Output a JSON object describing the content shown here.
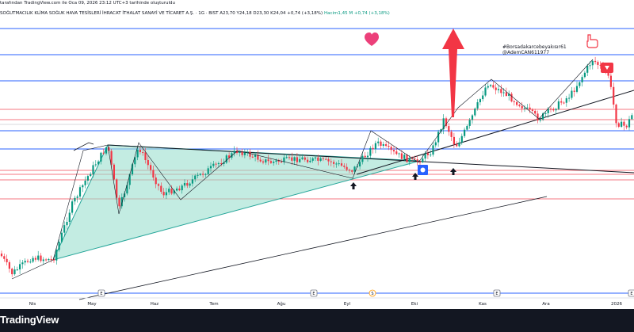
{
  "header": {
    "top_note": "tarafından TradingView.com ile Oca 09, 2026 23:12 UTC+3 tarihinde oluşturuldu",
    "symbol": "SOĞUTMACILIK KLİMA SOĞUK HAVA TESİSLERİ İHRACAT İTHALAT SANAYİ VE TİCARET A.Ş. · 1G · BIST",
    "ohlc": "A23,70 Y24,18 D23,30 K24,04 +0,74 (+3,18%)",
    "volume": "Hacim1,45 M +0,74 (+3,18%)"
  },
  "author_note": {
    "line1": "#Borsadakarcebeyakısır61",
    "line2": "@AdemCAN611977"
  },
  "footer": {
    "logo_text": "TradingView"
  },
  "colors": {
    "up": "#089981",
    "down": "#f23645",
    "blue_level": "#2962ff",
    "red_level": "#f23645",
    "triangle_fill": "#9be0cf",
    "triangle_stroke": "#26a69a",
    "trend_line": "#131722",
    "arrow": "#f23645",
    "heart": "#ec407a",
    "footer_bg": "#131722"
  },
  "icons": [
    "heart-icon",
    "hand-pointer-icon",
    "big-up-arrow-icon",
    "small-up-arrow-icon",
    "flag-icon",
    "earnings-badge-icon",
    "dividend-badge-icon",
    "tradingview-logo-icon"
  ],
  "chart_data": {
    "type": "candlestick",
    "title": "",
    "xlabel": "",
    "ylabel": "",
    "x_tick_labels": [
      "Nis",
      "May",
      "Haz",
      "Tem",
      "Ağu",
      "Eyl",
      "Eki",
      "Kas",
      "Ara",
      "2026"
    ],
    "y_scale": "price (no printed axis)",
    "horizontal_levels": [
      {
        "color": "blue",
        "count": 6
      },
      {
        "color": "red",
        "count": 6
      }
    ],
    "series_trend": [
      {
        "month": "Nis",
        "close_level": "low"
      },
      {
        "month": "May",
        "close_level": "rising"
      },
      {
        "month": "Haz",
        "close_level": "range"
      },
      {
        "month": "Tem",
        "close_level": "range"
      },
      {
        "month": "Ağu",
        "close_level": "range"
      },
      {
        "month": "Eyl",
        "close_level": "range-low"
      },
      {
        "month": "Eki",
        "close_level": "breakout"
      },
      {
        "month": "Kas",
        "close_level": "high"
      },
      {
        "month": "Ara",
        "close_level": "high"
      },
      {
        "month": "2026",
        "close_level": "pullback"
      }
    ],
    "event_badges": [
      {
        "label": "E",
        "kind": "earnings"
      },
      {
        "label": "E",
        "kind": "earnings"
      },
      {
        "label": "S",
        "kind": "dividend"
      },
      {
        "label": "E",
        "kind": "earnings"
      },
      {
        "label": "E",
        "kind": "earnings"
      }
    ],
    "grid": false,
    "legend": "none"
  }
}
